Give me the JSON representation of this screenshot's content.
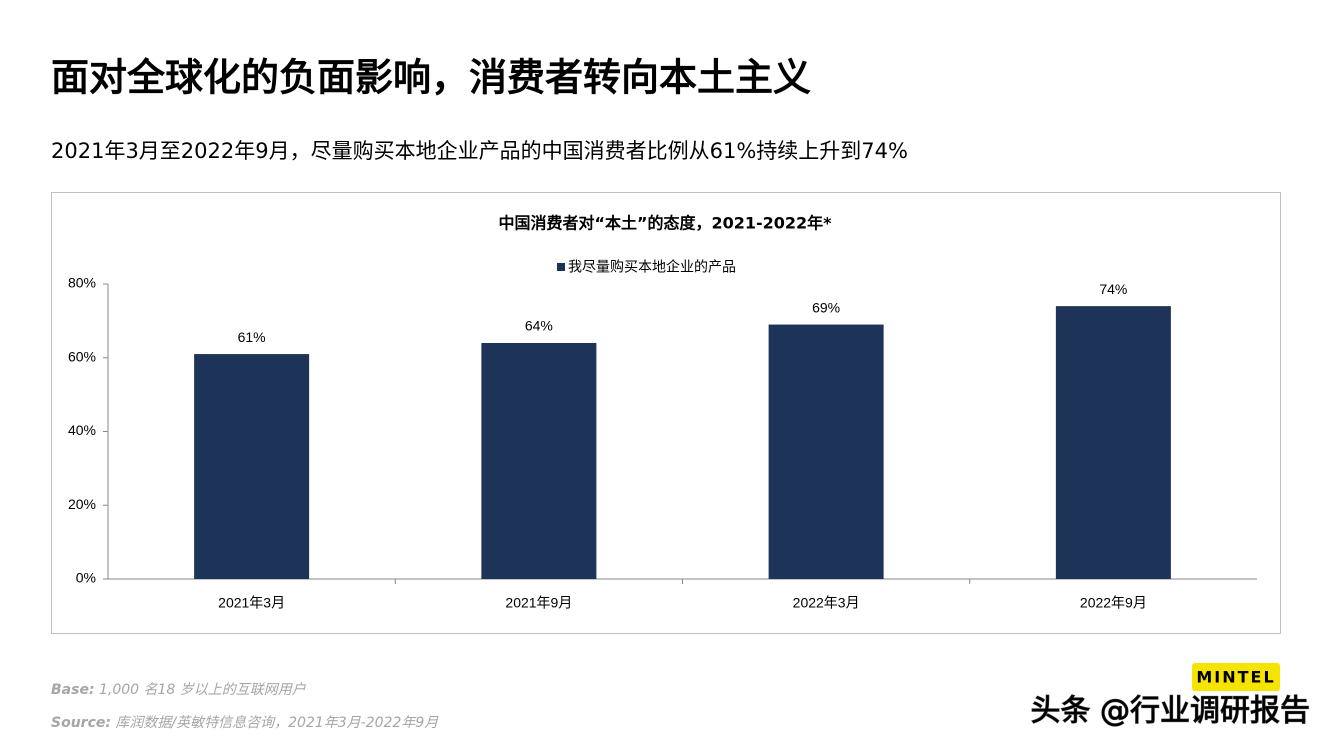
{
  "header": {
    "title": "面对全球化的负面影响，消费者转向本土主义",
    "subtitle": "2021年3月至2022年9月，尽量购买本地企业产品的中国消费者比例从61%持续上升到74%"
  },
  "chart_data": {
    "type": "bar",
    "title": "中国消费者对“本土”的态度，2021-2022年*",
    "categories": [
      "2021年3月",
      "2021年9月",
      "2022年3月",
      "2022年9月"
    ],
    "series": [
      {
        "name": "我尽量购买本地企业的产品",
        "color": "#1d3358",
        "values": [
          61,
          64,
          69,
          74
        ],
        "value_labels": [
          "61%",
          "64%",
          "69%",
          "74%"
        ]
      }
    ],
    "ylim": [
      0,
      80
    ],
    "yticks": [
      {
        "value": 0,
        "label": "0%"
      },
      {
        "value": 20,
        "label": "20%"
      },
      {
        "value": 40,
        "label": "40%"
      },
      {
        "value": 60,
        "label": "60%"
      },
      {
        "value": 80,
        "label": "80%"
      }
    ],
    "legend": "top",
    "grid": false
  },
  "footer": {
    "base": {
      "label": "Base:",
      "text": "1,000 名18 岁以上的互联网用户"
    },
    "source": {
      "label": "Source:",
      "text": "库润数据/英敏特信息咨询，2021年3月-2022年9月"
    },
    "logo": "MINTEL",
    "watermark": "头条 @行业调研报告"
  }
}
